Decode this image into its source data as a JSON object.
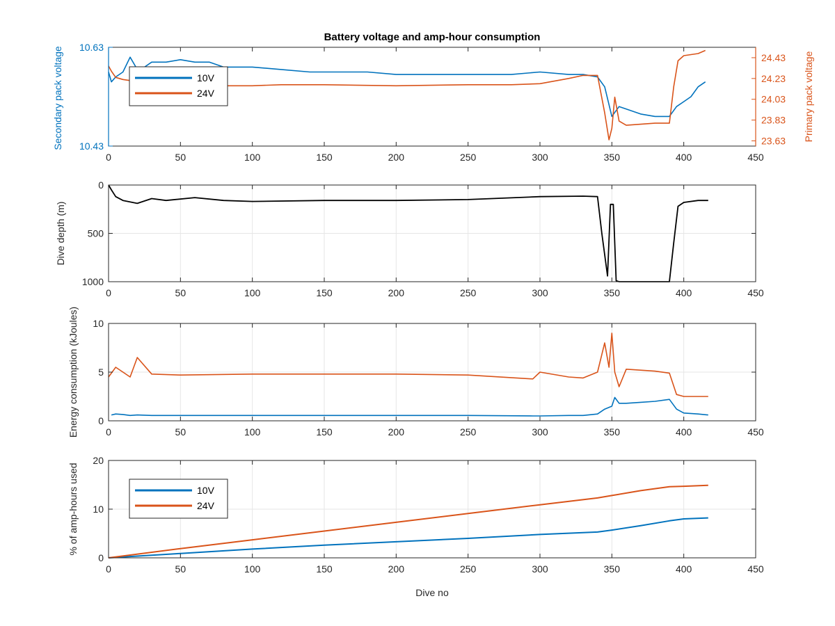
{
  "colors": {
    "s10v": "#0072BD",
    "s24v": "#D95319",
    "depth": "#000000",
    "axis": "#262626",
    "grid": "#e6e6e6"
  },
  "figure": {
    "title": "Battery voltage and amp-hour consumption",
    "xlabel": "Dive no"
  },
  "chart_data": [
    {
      "type": "line",
      "title": "Battery voltage and amp-hour consumption",
      "xlabel": "",
      "ylabel": "Secondary pack voltage",
      "y2label": "Primary pack voltage",
      "xlim": [
        0,
        450
      ],
      "xticks": [
        "0",
        "50",
        "100",
        "150",
        "200",
        "250",
        "300",
        "350",
        "400",
        "450"
      ],
      "ylim": [
        10.43,
        10.63
      ],
      "yticks": [
        "10.43",
        "10.63"
      ],
      "y2lim": [
        23.58,
        24.53
      ],
      "y2ticks": [
        "23.63",
        "23.83",
        "24.03",
        "24.23",
        "24.43"
      ],
      "grid": false,
      "legend": "top-left",
      "series": [
        {
          "name": "10V",
          "axis": "left",
          "x": [
            0,
            2,
            5,
            10,
            15,
            20,
            25,
            30,
            40,
            50,
            60,
            70,
            80,
            90,
            100,
            120,
            140,
            160,
            180,
            200,
            220,
            240,
            260,
            280,
            300,
            320,
            330,
            340,
            345,
            350,
            355,
            360,
            370,
            380,
            390,
            395,
            400,
            405,
            410,
            415
          ],
          "y": [
            10.58,
            10.56,
            10.57,
            10.58,
            10.61,
            10.585,
            10.59,
            10.6,
            10.6,
            10.605,
            10.6,
            10.6,
            10.59,
            10.59,
            10.59,
            10.585,
            10.58,
            10.58,
            10.58,
            10.575,
            10.575,
            10.575,
            10.575,
            10.575,
            10.58,
            10.575,
            10.575,
            10.57,
            10.55,
            10.49,
            10.51,
            10.505,
            10.495,
            10.49,
            10.49,
            10.51,
            10.52,
            10.53,
            10.55,
            10.56
          ]
        },
        {
          "name": "24V",
          "axis": "right",
          "x": [
            0,
            2,
            5,
            10,
            20,
            30,
            50,
            80,
            100,
            120,
            150,
            200,
            250,
            280,
            300,
            320,
            330,
            340,
            345,
            348,
            350,
            352,
            355,
            360,
            370,
            380,
            390,
            393,
            396,
            400,
            410,
            415
          ],
          "y": [
            24.35,
            24.3,
            24.24,
            24.22,
            24.2,
            24.18,
            24.17,
            24.16,
            24.16,
            24.17,
            24.17,
            24.16,
            24.17,
            24.17,
            24.18,
            24.23,
            24.26,
            24.26,
            23.9,
            23.64,
            23.75,
            24.05,
            23.82,
            23.78,
            23.79,
            23.8,
            23.8,
            24.15,
            24.4,
            24.45,
            24.47,
            24.5
          ]
        }
      ]
    },
    {
      "type": "line",
      "xlabel": "",
      "ylabel": "Dive depth (m)",
      "xlim": [
        0,
        450
      ],
      "xticks": [
        "0",
        "50",
        "100",
        "150",
        "200",
        "250",
        "300",
        "350",
        "400",
        "450"
      ],
      "ylim": [
        1000,
        0
      ],
      "yticks": [
        "1000",
        "500",
        "0"
      ],
      "y_reversed": true,
      "grid": true,
      "series": [
        {
          "x": [
            0,
            2,
            5,
            10,
            20,
            30,
            40,
            60,
            80,
            100,
            150,
            200,
            250,
            300,
            330,
            340,
            343,
            347,
            349,
            351,
            353,
            355,
            360,
            370,
            380,
            390,
            393,
            396,
            400,
            410,
            417
          ],
          "y": [
            0,
            50,
            120,
            160,
            190,
            140,
            160,
            130,
            160,
            170,
            160,
            160,
            150,
            120,
            115,
            120,
            500,
            940,
            200,
            200,
            990,
            1000,
            1000,
            1000,
            1000,
            1000,
            600,
            220,
            180,
            160,
            160
          ]
        }
      ]
    },
    {
      "type": "line",
      "xlabel": "",
      "ylabel": "Energy consumption (kJoules)",
      "xlim": [
        0,
        450
      ],
      "xticks": [
        "0",
        "50",
        "100",
        "150",
        "200",
        "250",
        "300",
        "350",
        "400",
        "450"
      ],
      "ylim": [
        0,
        10
      ],
      "yticks": [
        "0",
        "5",
        "10"
      ],
      "grid": true,
      "series": [
        {
          "name": "10V",
          "x": [
            2,
            5,
            10,
            15,
            20,
            30,
            50,
            100,
            150,
            200,
            250,
            295,
            300,
            320,
            330,
            340,
            345,
            350,
            352,
            355,
            360,
            370,
            380,
            390,
            395,
            400,
            410,
            417
          ],
          "y": [
            0.6,
            0.7,
            0.65,
            0.55,
            0.6,
            0.55,
            0.55,
            0.55,
            0.55,
            0.55,
            0.55,
            0.5,
            0.5,
            0.55,
            0.55,
            0.7,
            1.2,
            1.5,
            2.4,
            1.8,
            1.8,
            1.9,
            2.0,
            2.2,
            1.2,
            0.8,
            0.7,
            0.6
          ]
        },
        {
          "name": "24V",
          "x": [
            0,
            5,
            10,
            15,
            20,
            30,
            50,
            100,
            150,
            200,
            250,
            295,
            300,
            320,
            330,
            340,
            345,
            348,
            350,
            352,
            355,
            360,
            370,
            380,
            390,
            395,
            400,
            410,
            417
          ],
          "y": [
            4.5,
            5.5,
            5.0,
            4.5,
            6.5,
            4.8,
            4.7,
            4.8,
            4.8,
            4.8,
            4.7,
            4.3,
            5.0,
            4.5,
            4.4,
            5.0,
            8.0,
            5.5,
            9.0,
            5.0,
            3.5,
            5.3,
            5.2,
            5.1,
            4.9,
            2.7,
            2.5,
            2.5,
            2.5
          ]
        }
      ]
    },
    {
      "type": "line",
      "xlabel": "Dive no",
      "ylabel": "% of amp-hours used",
      "xlim": [
        0,
        450
      ],
      "xticks": [
        "0",
        "50",
        "100",
        "150",
        "200",
        "250",
        "300",
        "350",
        "400",
        "450"
      ],
      "ylim": [
        0,
        20
      ],
      "yticks": [
        "0",
        "10",
        "20"
      ],
      "grid": true,
      "legend": "top-left",
      "series": [
        {
          "name": "10V",
          "x": [
            0,
            50,
            100,
            150,
            200,
            250,
            300,
            340,
            350,
            370,
            390,
            400,
            417
          ],
          "y": [
            0,
            0.9,
            1.8,
            2.6,
            3.3,
            4.0,
            4.8,
            5.3,
            5.7,
            6.6,
            7.6,
            8.0,
            8.2
          ]
        },
        {
          "name": "24V",
          "x": [
            0,
            50,
            100,
            150,
            200,
            250,
            300,
            340,
            350,
            370,
            390,
            400,
            417
          ],
          "y": [
            0,
            1.9,
            3.7,
            5.5,
            7.3,
            9.1,
            10.9,
            12.3,
            12.8,
            13.8,
            14.6,
            14.7,
            14.9
          ]
        }
      ]
    }
  ]
}
